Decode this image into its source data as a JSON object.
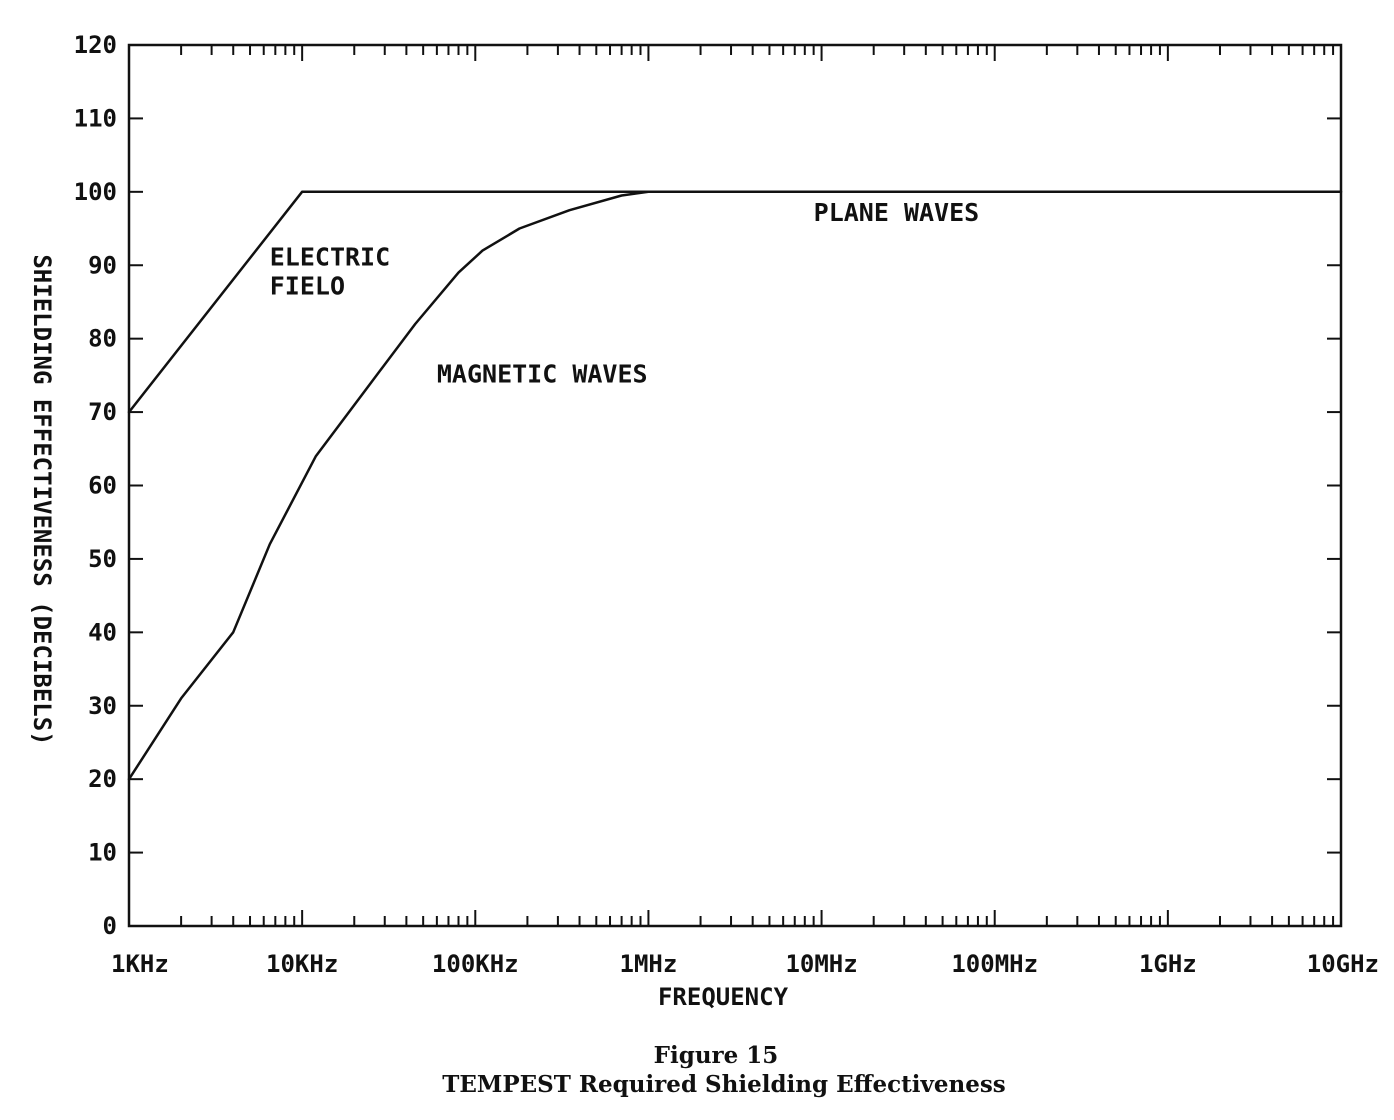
{
  "chart_data": {
    "type": "line",
    "x_scale": "log",
    "x_tick_labels": [
      "1KHz",
      "10KHz",
      "100KHz",
      "1MHz",
      "10MHz",
      "100MHz",
      "1GHz",
      "10GHz"
    ],
    "x_tick_values_hz": [
      1000,
      10000,
      100000,
      1000000,
      10000000,
      100000000,
      1000000000,
      10000000000
    ],
    "xlim_hz": [
      1000,
      10000000000
    ],
    "ylim": [
      0,
      120
    ],
    "y_tick_labels": [
      "0",
      "10",
      "20",
      "30",
      "40",
      "50",
      "60",
      "70",
      "80",
      "90",
      "100",
      "110",
      "120"
    ],
    "y_tick_values": [
      0,
      10,
      20,
      30,
      40,
      50,
      60,
      70,
      80,
      90,
      100,
      110,
      120
    ],
    "xlabel": "FREQUENCY",
    "ylabel": "SHIELDING EFFECTIVENESS (DECIBELS)",
    "grid": false,
    "series": [
      {
        "points_hz_db": [
          [
            1000,
            70
          ],
          [
            10000,
            100
          ],
          [
            1000000,
            100
          ],
          [
            10000000000,
            100
          ]
        ]
      },
      {
        "points_hz_db": [
          [
            1000,
            20
          ],
          [
            2000,
            31
          ],
          [
            4000,
            40
          ],
          [
            6500,
            52
          ],
          [
            12000,
            64
          ],
          [
            25000,
            74
          ],
          [
            45000,
            82
          ],
          [
            80000,
            89
          ],
          [
            110000,
            92
          ],
          [
            180000,
            95
          ],
          [
            350000,
            97.5
          ],
          [
            700000,
            99.5
          ],
          [
            1000000,
            100
          ]
        ]
      }
    ],
    "annotations": [
      {
        "text": "ELECTRIC",
        "x_hz": 6500,
        "y": 90
      },
      {
        "text": "FIELO",
        "x_hz": 6500,
        "y": 86
      },
      {
        "text": "MAGNETIC WAVES",
        "x_hz": 60000,
        "y": 74
      },
      {
        "text": "PLANE WAVES",
        "x_hz": 9000000,
        "y": 96
      }
    ]
  },
  "caption": {
    "line1": "Figure 15",
    "line2": "TEMPEST Required Shielding Effectiveness"
  },
  "colors": {
    "ink": "#111111",
    "paper": "#ffffff"
  }
}
